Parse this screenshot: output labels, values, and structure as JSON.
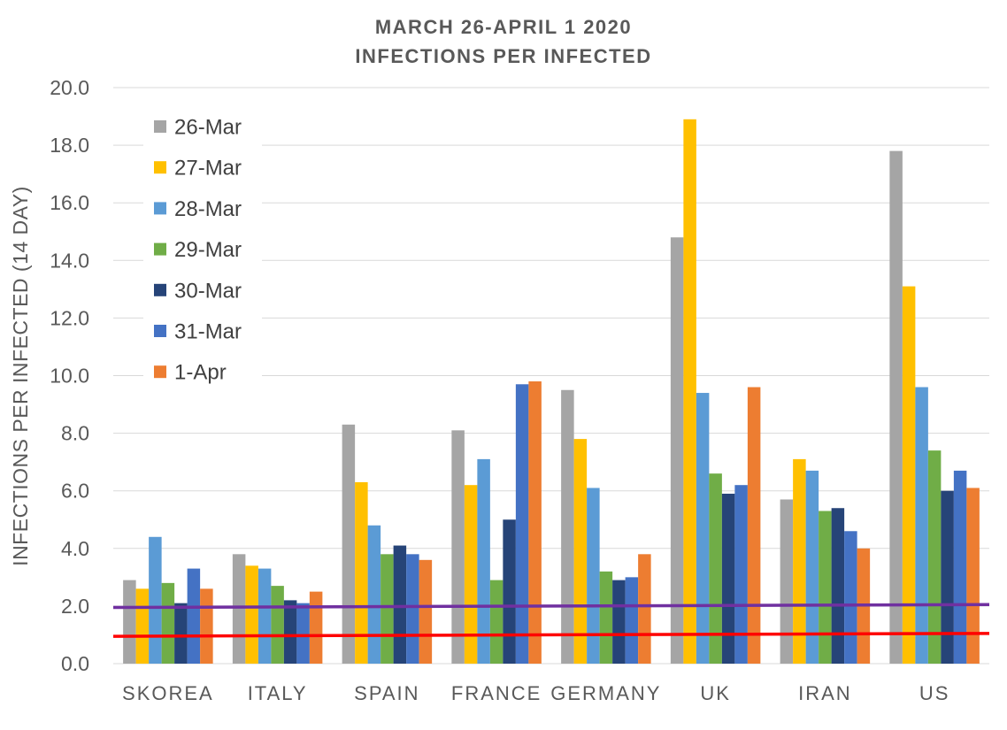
{
  "chart_data": {
    "type": "bar",
    "title": "MARCH 26-APRIL 1 2020",
    "subtitle": "INFECTIONS PER INFECTED",
    "ylabel": "INFECTIONS PER INFECTED (14 DAY)",
    "xlabel": "",
    "ylim": [
      0,
      20
    ],
    "yticks": [
      "0.0",
      "2.0",
      "4.0",
      "6.0",
      "8.0",
      "10.0",
      "12.0",
      "14.0",
      "16.0",
      "18.0",
      "20.0"
    ],
    "grid": true,
    "legend_position": "top-left",
    "categories": [
      "SKOREA",
      "ITALY",
      "SPAIN",
      "FRANCE",
      "GERMANY",
      "UK",
      "IRAN",
      "US"
    ],
    "series": [
      {
        "name": "26-Mar",
        "color": "#a5a5a5",
        "values": [
          2.9,
          3.8,
          8.3,
          8.1,
          9.5,
          14.8,
          5.7,
          17.8
        ]
      },
      {
        "name": "27-Mar",
        "color": "#ffc000",
        "values": [
          2.6,
          3.4,
          6.3,
          6.2,
          7.8,
          18.9,
          7.1,
          13.1
        ]
      },
      {
        "name": "28-Mar",
        "color": "#5b9bd5",
        "values": [
          4.4,
          3.3,
          4.8,
          7.1,
          6.1,
          9.4,
          6.7,
          9.6
        ]
      },
      {
        "name": "29-Mar",
        "color": "#70ad47",
        "values": [
          2.8,
          2.7,
          3.8,
          2.9,
          3.2,
          6.6,
          5.3,
          7.4
        ]
      },
      {
        "name": "30-Mar",
        "color": "#264478",
        "values": [
          2.1,
          2.2,
          4.1,
          5.0,
          2.9,
          5.9,
          5.4,
          6.0
        ]
      },
      {
        "name": "31-Mar",
        "color": "#4472c4",
        "values": [
          3.3,
          2.1,
          3.8,
          9.7,
          3.0,
          6.2,
          4.6,
          6.7
        ]
      },
      {
        "name": "1-Apr",
        "color": "#ed7d31",
        "values": [
          2.6,
          2.5,
          3.6,
          9.8,
          3.8,
          9.6,
          4.0,
          6.1
        ]
      }
    ],
    "reference_lines": [
      {
        "color": "#7030a0",
        "y_start": 1.95,
        "y_end": 2.05
      },
      {
        "color": "#ff0000",
        "y_start": 0.95,
        "y_end": 1.05
      }
    ]
  }
}
